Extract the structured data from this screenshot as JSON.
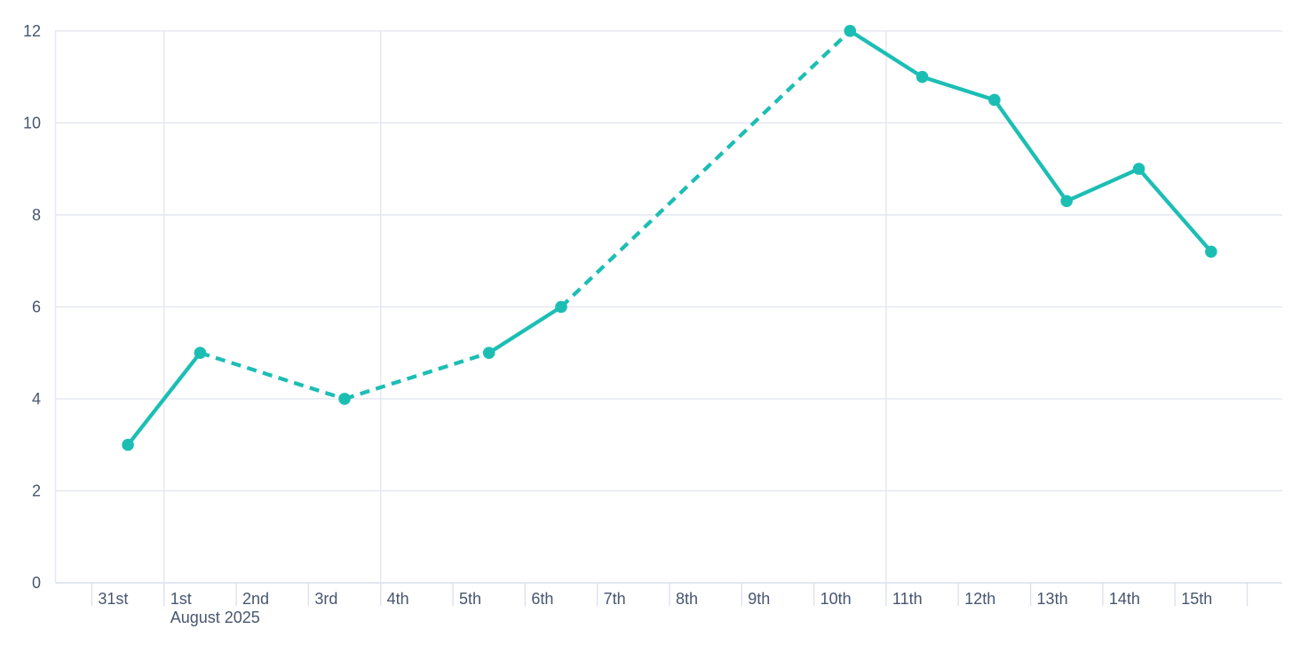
{
  "chart_data": {
    "type": "line",
    "title": "",
    "categories": [
      "31st",
      "1st",
      "2nd",
      "3rd",
      "4th",
      "5th",
      "6th",
      "7th",
      "8th",
      "9th",
      "10th",
      "11th",
      "12th",
      "13th",
      "14th",
      "15th"
    ],
    "values": [
      3,
      5,
      null,
      4,
      null,
      5,
      6,
      null,
      null,
      null,
      12,
      11,
      10.5,
      8.3,
      9,
      7.2
    ],
    "x_axis": {
      "month_label": "August 2025",
      "month_label_anchor_index": 1,
      "unlabeled_trailing_tick": true,
      "week_boundary_gridline_indices": [
        1,
        4,
        11
      ]
    },
    "y_axis": {
      "min": 0,
      "max": 12,
      "tick_step": 2,
      "tick_labels": [
        "0",
        "2",
        "4",
        "6",
        "8",
        "10",
        "12"
      ]
    },
    "style_notes": {
      "gap_segments": "dashed",
      "present_segments": "solid",
      "markers": "filled-circle",
      "legend": "none",
      "grid": "horizontal-every-2 plus weekly-vertical"
    }
  },
  "colors": {
    "series": "#1cbeb4",
    "grid": "#e4e7f1",
    "axis": "#dde1ec",
    "label": "#47566f",
    "background": "#ffffff"
  }
}
